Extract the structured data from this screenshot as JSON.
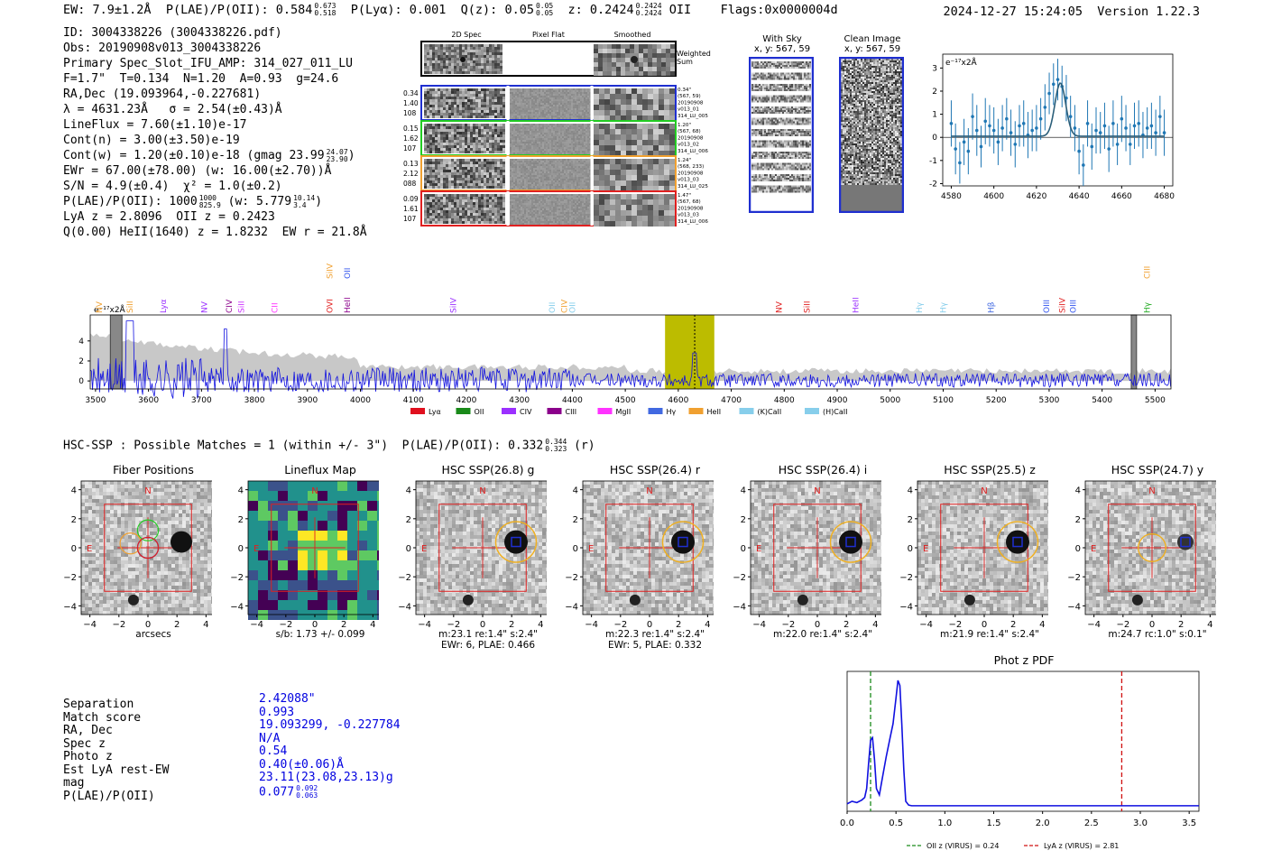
{
  "header": {
    "ew": "EW: 7.9±1.2Å",
    "plae_label": "P(LAE)/P(OII): 0.584",
    "plae_hi": "0.673",
    "plae_lo": "0.518",
    "plya": "P(Lyα): 0.001",
    "q_label": "Q(z): 0.05",
    "q_hi": "0.05",
    "q_lo": "0.05",
    "z_label": "z: 0.2424",
    "z_hi": "0.2424",
    "z_lo": "0.2424",
    "z_line": "OII",
    "flags": "Flags:0x0000004d",
    "timestamp": "2024-12-27 15:24:05  Version 1.22.3"
  },
  "info": {
    "id": "ID: 3004338226 (3004338226.pdf)",
    "obs": "Obs: 20190908v013_3004338226",
    "primary": "Primary Spec_Slot_IFU_AMP: 314_027_011_LU",
    "params": "F=1.7\"  T=0.134  N=1.20  A=0.93  g=24.6",
    "radec": "RA,Dec (19.093964,-0.227681)",
    "lambda": "λ = 4631.23Å   σ = 2.54(±0.43)Å",
    "lineflux": "LineFlux = 7.60(±1.10)e-17",
    "contn": "Cont(n) = 3.00(±3.50)e-19",
    "contw": "Cont(w) = 1.20(±0.10)e-18 (gmag 23.99",
    "contw_hi": "24.07",
    "contw_lo": "23.90",
    "ewr": "EWr = 67.00(±78.00) (w: 16.00(±2.70))Å",
    "sn": "S/N = 4.9(±0.4)  χ² = 1.0(±0.2)",
    "plae": "P(LAE)/P(OII): 1000",
    "plae_hi": "1000",
    "plae_lo": "825.9",
    "plae_w": "(w: 5.779",
    "plae_w_hi": "10.14",
    "plae_w_lo": "3.4",
    "lya": "LyA z = 2.8096  OII z = 0.2423",
    "q": "Q(0.00) HeII(1640) z = 1.8232  EW r = 21.8Å"
  },
  "spec2d": {
    "col_titles": [
      "2D Spec",
      "Pixel Flat",
      "Smoothed"
    ],
    "weighted_label": "Weighted\nSum",
    "fibers": [
      {
        "left": [
          "0.34",
          "1.40",
          "108"
        ],
        "right": [
          "0.34\"",
          "(567, 59)",
          "20190908",
          "v013_01",
          "314_LU_005"
        ],
        "color": "#1f2fd0"
      },
      {
        "left": [
          "0.15",
          "1.62",
          "107"
        ],
        "right": [
          "1.20\"",
          "(567, 68)",
          "20190908",
          "v013_02",
          "314_LU_006"
        ],
        "color": "#22cc22"
      },
      {
        "left": [
          "0.13",
          "2.12",
          "088"
        ],
        "right": [
          "1.24\"",
          "(568, 233)",
          "20190908",
          "v013_03",
          "314_LU_025"
        ],
        "color": "#f0a030"
      },
      {
        "left": [
          "0.09",
          "1.61",
          "107"
        ],
        "right": [
          "1.47\"",
          "(567, 68)",
          "20190908",
          "v013_03",
          "314_LU_006"
        ],
        "color": "#e02020"
      }
    ]
  },
  "cutouts_small": {
    "sky_title": "With Sky",
    "sky_sub": "x, y: 567, 59",
    "clean_title": "Clean Image",
    "clean_sub": "x, y: 567, 59"
  },
  "chart_data": [
    {
      "type": "line",
      "title": "",
      "ylabel_unit": "e⁻¹⁷x2Å",
      "xlim": [
        4576,
        4684
      ],
      "ylim": [
        -2.1,
        3.6
      ],
      "xticks": [
        4580,
        4600,
        4620,
        4640,
        4660,
        4680
      ],
      "yticks": [
        -2,
        -1,
        0,
        1,
        2,
        3
      ],
      "x": [
        4580,
        4582,
        4584,
        4586,
        4588,
        4590,
        4592,
        4594,
        4596,
        4598,
        4600,
        4602,
        4604,
        4606,
        4608,
        4610,
        4612,
        4614,
        4616,
        4618,
        4620,
        4622,
        4624,
        4626,
        4628,
        4630,
        4632,
        4634,
        4636,
        4638,
        4640,
        4642,
        4644,
        4646,
        4648,
        4650,
        4652,
        4654,
        4656,
        4658,
        4660,
        4662,
        4664,
        4666,
        4668,
        4670,
        4672,
        4674,
        4676,
        4678,
        4680
      ],
      "values": [
        0.6,
        -0.5,
        -1.1,
        -0.2,
        -0.6,
        0.9,
        0.3,
        -0.4,
        0.7,
        0.5,
        0.3,
        -0.2,
        0.4,
        0.8,
        0.2,
        -0.3,
        0.5,
        0.6,
        0.1,
        0.3,
        0.4,
        0.8,
        1.3,
        1.9,
        2.3,
        2.5,
        2.2,
        1.7,
        0.9,
        0.4,
        -0.6,
        -1.2,
        0.6,
        -0.4,
        0.3,
        0.2,
        0.5,
        -0.5,
        0.6,
        -0.3,
        0.8,
        0.4,
        -0.3,
        0.5,
        0.6,
        0.1,
        0.4,
        0.5,
        0.2,
        0.9,
        0.2
      ],
      "errors": [
        1.0,
        1.1,
        0.9,
        1.0,
        1.0,
        1.0,
        1.1,
        0.9,
        1.0,
        0.9,
        1.0,
        1.0,
        1.0,
        0.9,
        1.0,
        1.0,
        0.9,
        1.0,
        1.0,
        0.9,
        1.0,
        0.9,
        1.0,
        0.9,
        0.9,
        0.9,
        0.9,
        1.0,
        0.9,
        1.0,
        1.0,
        0.9,
        1.0,
        1.0,
        1.0,
        0.9,
        1.0,
        1.0,
        1.0,
        0.9,
        1.0,
        1.0,
        0.9,
        1.0,
        1.0,
        1.0,
        0.9,
        1.0,
        1.0,
        0.9,
        1.0
      ],
      "fit_center": 4631.2,
      "fit_sigma": 2.54,
      "fit_amp": 2.3,
      "fit_base": 0.05
    },
    {
      "type": "line",
      "ylabel_unit": "e⁻¹⁷x2Å",
      "xlim": [
        3490,
        5530
      ],
      "ylim": [
        -0.8,
        6.6
      ],
      "xticks": [
        3500,
        3600,
        3700,
        3800,
        3900,
        4000,
        4100,
        4200,
        4300,
        4400,
        4500,
        4600,
        4700,
        4800,
        4900,
        5000,
        5100,
        5200,
        5300,
        5400,
        5500
      ],
      "yticks": [
        0,
        2,
        4
      ],
      "highlight_band": [
        4575,
        4668
      ],
      "highlight_color": "#bcbc00",
      "line_marker": 4631,
      "masked_bands": [
        [
          3528,
          3550
        ],
        [
          5455,
          5465
        ]
      ],
      "line_labels": [
        {
          "name": "NV",
          "x": 3507,
          "color": "#f0a030",
          "up": false
        },
        {
          "name": "SiII",
          "x": 3565,
          "color": "#f0a030",
          "up": false
        },
        {
          "name": "Lyα",
          "x": 3628,
          "color": "#9b30ff",
          "up": false
        },
        {
          "name": "NV",
          "x": 3705,
          "color": "#9b30ff",
          "up": false
        },
        {
          "name": "CIV",
          "x": 3752,
          "color": "#8b008b",
          "up": false
        },
        {
          "name": "SiII",
          "x": 3775,
          "color": "#cc33ff",
          "up": false
        },
        {
          "name": "CII",
          "x": 3838,
          "color": "#ff33ff",
          "up": false
        },
        {
          "name": "SiIV",
          "x": 3942,
          "color": "#f0a030",
          "up": true
        },
        {
          "name": "OVI",
          "x": 3942,
          "color": "#e02020",
          "up": false
        },
        {
          "name": "OII",
          "x": 3975,
          "color": "#3355ee",
          "up": true
        },
        {
          "name": "HeII",
          "x": 3975,
          "color": "#8b008b",
          "up": false
        },
        {
          "name": "SiIV",
          "x": 4175,
          "color": "#9b30ff",
          "up": false
        },
        {
          "name": "OII",
          "x": 4362,
          "color": "#87ceeb",
          "up": false
        },
        {
          "name": "CIV",
          "x": 4385,
          "color": "#f0a030",
          "up": false
        },
        {
          "name": "OII",
          "x": 4400,
          "color": "#87ceeb",
          "up": false
        },
        {
          "name": "NV",
          "x": 4790,
          "color": "#e02020",
          "up": false
        },
        {
          "name": "SiII",
          "x": 4843,
          "color": "#e02020",
          "up": false
        },
        {
          "name": "HeII",
          "x": 4935,
          "color": "#9b30ff",
          "up": false
        },
        {
          "name": "Hγ",
          "x": 5055,
          "color": "#87ceeb",
          "up": false
        },
        {
          "name": "Hγ",
          "x": 5100,
          "color": "#87ceeb",
          "up": false
        },
        {
          "name": "Hβ",
          "x": 5190,
          "color": "#4169e1",
          "up": false
        },
        {
          "name": "OIII",
          "x": 5295,
          "color": "#3355ee",
          "up": false
        },
        {
          "name": "SiIV",
          "x": 5325,
          "color": "#e02020",
          "up": false
        },
        {
          "name": "OIII",
          "x": 5345,
          "color": "#3355ee",
          "up": false
        },
        {
          "name": "CIII",
          "x": 5485,
          "color": "#f0a030",
          "up": true
        },
        {
          "name": "Hγ",
          "x": 5485,
          "color": "#22aa22",
          "up": false
        }
      ],
      "legend": [
        {
          "name": "Lyα",
          "color": "#e0101e"
        },
        {
          "name": "OII",
          "color": "#1a8a1a"
        },
        {
          "name": "CIV",
          "color": "#9b30ff"
        },
        {
          "name": "CIII",
          "color": "#8b008b"
        },
        {
          "name": "MgII",
          "color": "#ff33ff"
        },
        {
          "name": "Hγ",
          "color": "#4169e1"
        },
        {
          "name": "HeII",
          "color": "#f0a030"
        },
        {
          "name": "(K)CaII",
          "color": "#87ceeb"
        },
        {
          "name": "(H)CaII",
          "color": "#87ceeb"
        }
      ]
    },
    {
      "type": "line",
      "title": "Phot z PDF",
      "xlim": [
        0,
        3.6
      ],
      "xticks": [
        0.0,
        0.5,
        1.0,
        1.5,
        2.0,
        2.5,
        3.0,
        3.5
      ],
      "x": [
        0,
        0.05,
        0.1,
        0.15,
        0.18,
        0.2,
        0.22,
        0.24,
        0.26,
        0.28,
        0.3,
        0.33,
        0.36,
        0.4,
        0.44,
        0.47,
        0.5,
        0.52,
        0.54,
        0.56,
        0.58,
        0.6,
        0.63,
        0.66,
        0.7,
        0.8,
        1.0,
        1.5,
        2.0,
        2.5,
        3.0,
        3.6
      ],
      "values": [
        0.03,
        0.05,
        0.04,
        0.06,
        0.08,
        0.15,
        0.35,
        0.53,
        0.55,
        0.38,
        0.15,
        0.1,
        0.23,
        0.4,
        0.55,
        0.66,
        0.86,
        1.0,
        0.96,
        0.65,
        0.3,
        0.05,
        0.02,
        0.015,
        0.015,
        0.015,
        0.015,
        0.015,
        0.015,
        0.015,
        0.015,
        0.015
      ],
      "vlines": [
        {
          "x": 0.24,
          "color": "#1a8a1a",
          "label": "OII z (VIRUS) = 0.24"
        },
        {
          "x": 2.81,
          "color": "#d01010",
          "label": "LyA z (VIRUS) = 2.81"
        }
      ]
    }
  ],
  "hsc": {
    "title": "HSC-SSP : Possible Matches = 1 (within +/- 3\")  P(LAE)/P(OII): 0.332",
    "title_hi": "0.344",
    "title_lo": "0.323",
    "title_tail": "(r)",
    "cutouts": [
      {
        "title": "Fiber Positions",
        "cap1": "arcsecs",
        "cap2": ""
      },
      {
        "title": "Lineflux Map",
        "cap1": "s/b: 1.73 +/- 0.099",
        "cap2": ""
      },
      {
        "title": "HSC SSP(26.8) g",
        "cap1": "m:23.1  re:1.4\"  s:2.4\"",
        "cap2": "EWr: 6, PLAE: 0.466"
      },
      {
        "title": "HSC SSP(26.4) r",
        "cap1": "m:22.3  re:1.4\"  s:2.4\"",
        "cap2": "EWr: 5, PLAE: 0.332"
      },
      {
        "title": "HSC SSP(26.4) i",
        "cap1": "m:22.0  re:1.4\"  s:2.4\"",
        "cap2": ""
      },
      {
        "title": "HSC SSP(25.5) z",
        "cap1": "m:21.9  re:1.4\"  s:2.4\"",
        "cap2": ""
      },
      {
        "title": "HSC SSP(24.7) y",
        "cap1": "m:24.7  rc:1.0\"  s:0.1\"",
        "cap2": ""
      }
    ],
    "axis_ticks": [
      "4",
      "2",
      "0",
      "−2",
      "−4"
    ],
    "x_ticks": [
      "−4",
      "−2",
      "0",
      "2",
      "4"
    ],
    "north": "N",
    "east": "E"
  },
  "match": {
    "labels": [
      "Separation",
      "Match score",
      "RA, Dec",
      "Spec z",
      "Photo z",
      "Est LyA rest-EW",
      "mag",
      "P(LAE)/P(OII)"
    ],
    "values": [
      "2.42088\"",
      "0.993",
      "19.093299, -0.227784",
      "N/A",
      "0.54",
      "0.40(±0.06)Å",
      "23.11(23.08,23.13)g",
      "0.077"
    ],
    "plae_hi": "0.092",
    "plae_lo": "0.063"
  }
}
